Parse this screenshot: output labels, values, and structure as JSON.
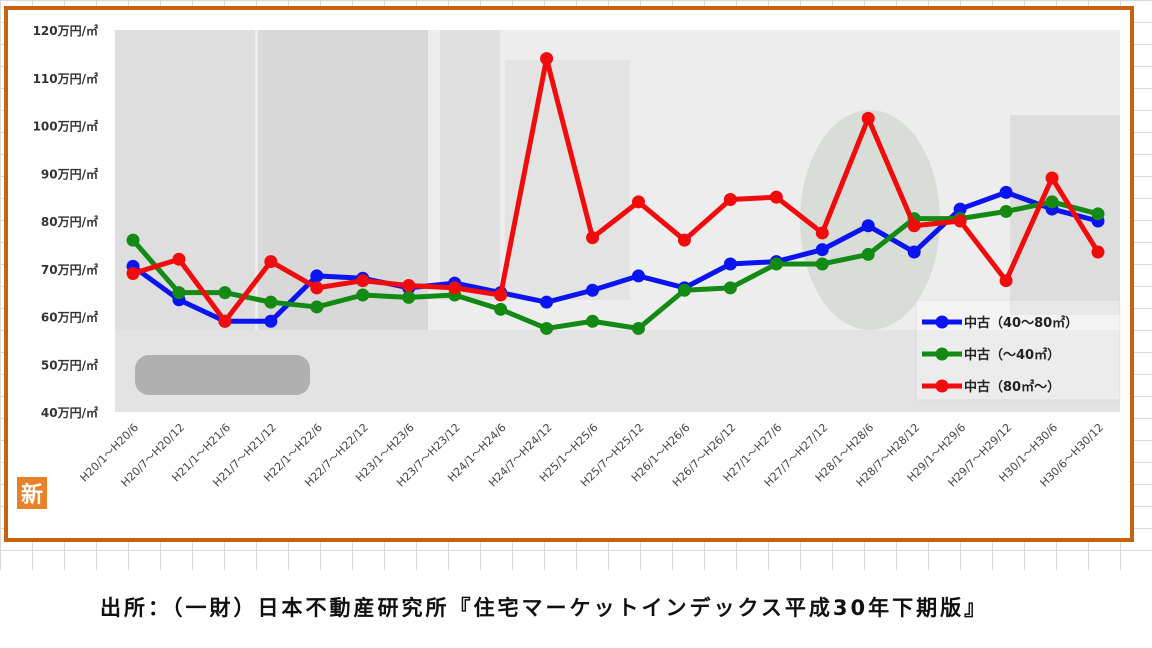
{
  "colors": {
    "frame": "#c8620f",
    "blue": "#0a14f0",
    "green": "#138a13",
    "red": "#f00c0c",
    "badge": "#e8822a"
  },
  "badge_char": "新",
  "source": "出所：（一財）日本不動産研究所『住宅マーケットインデックス平成30年下期版』",
  "chart_data": {
    "type": "line",
    "title": "",
    "xlabel": "",
    "ylabel": "",
    "ylim": [
      40,
      120
    ],
    "yticks": [
      "40万円/㎡",
      "50万円/㎡",
      "60万円/㎡",
      "70万円/㎡",
      "80万円/㎡",
      "90万円/㎡",
      "100万円/㎡",
      "110万円/㎡",
      "120万円/㎡"
    ],
    "categories": [
      "H20/1～H20/6",
      "H20/7～H20/12",
      "H21/1～H21/6",
      "H21/7～H21/12",
      "H22/1～H22/6",
      "H22/7～H22/12",
      "H23/1～H23/6",
      "H23/7～H23/12",
      "H24/1～H24/6",
      "H24/7～H24/12",
      "H25/1～H25/6",
      "H25/7～H25/12",
      "H26/1～H26/6",
      "H26/7～H26/12",
      "H27/1～H27/6",
      "H27/7～H27/12",
      "H28/1～H28/6",
      "H28/7～H28/12",
      "H29/1～H29/6",
      "H29/7～H29/12",
      "H30/1～H30/6",
      "H30/6～H30/12"
    ],
    "series": [
      {
        "name": "中古（40～80㎡）",
        "color": "#0a14f0",
        "values": [
          70.5,
          63.5,
          59,
          59,
          68.5,
          68,
          66,
          67,
          65,
          63,
          65.5,
          68.5,
          66,
          71,
          71.5,
          74,
          79,
          73.5,
          82.5,
          86,
          82.5,
          80
        ]
      },
      {
        "name": "中古（～40㎡）",
        "color": "#138a13",
        "values": [
          76,
          65,
          65,
          63,
          62,
          64.5,
          64,
          64.5,
          61.5,
          57.5,
          59,
          57.5,
          65.5,
          66,
          71,
          71,
          73,
          80.5,
          80.5,
          82,
          84,
          81.5
        ]
      },
      {
        "name": "中古（80㎡～）",
        "color": "#f00c0c",
        "values": [
          69,
          72,
          59,
          71.5,
          66,
          67.5,
          66.5,
          66,
          64.5,
          114,
          76.5,
          84,
          76,
          84.5,
          85,
          77.5,
          101.5,
          79,
          80,
          67.5,
          89,
          73.5
        ]
      }
    ],
    "legend_position": "bottom-right",
    "grid": false
  }
}
